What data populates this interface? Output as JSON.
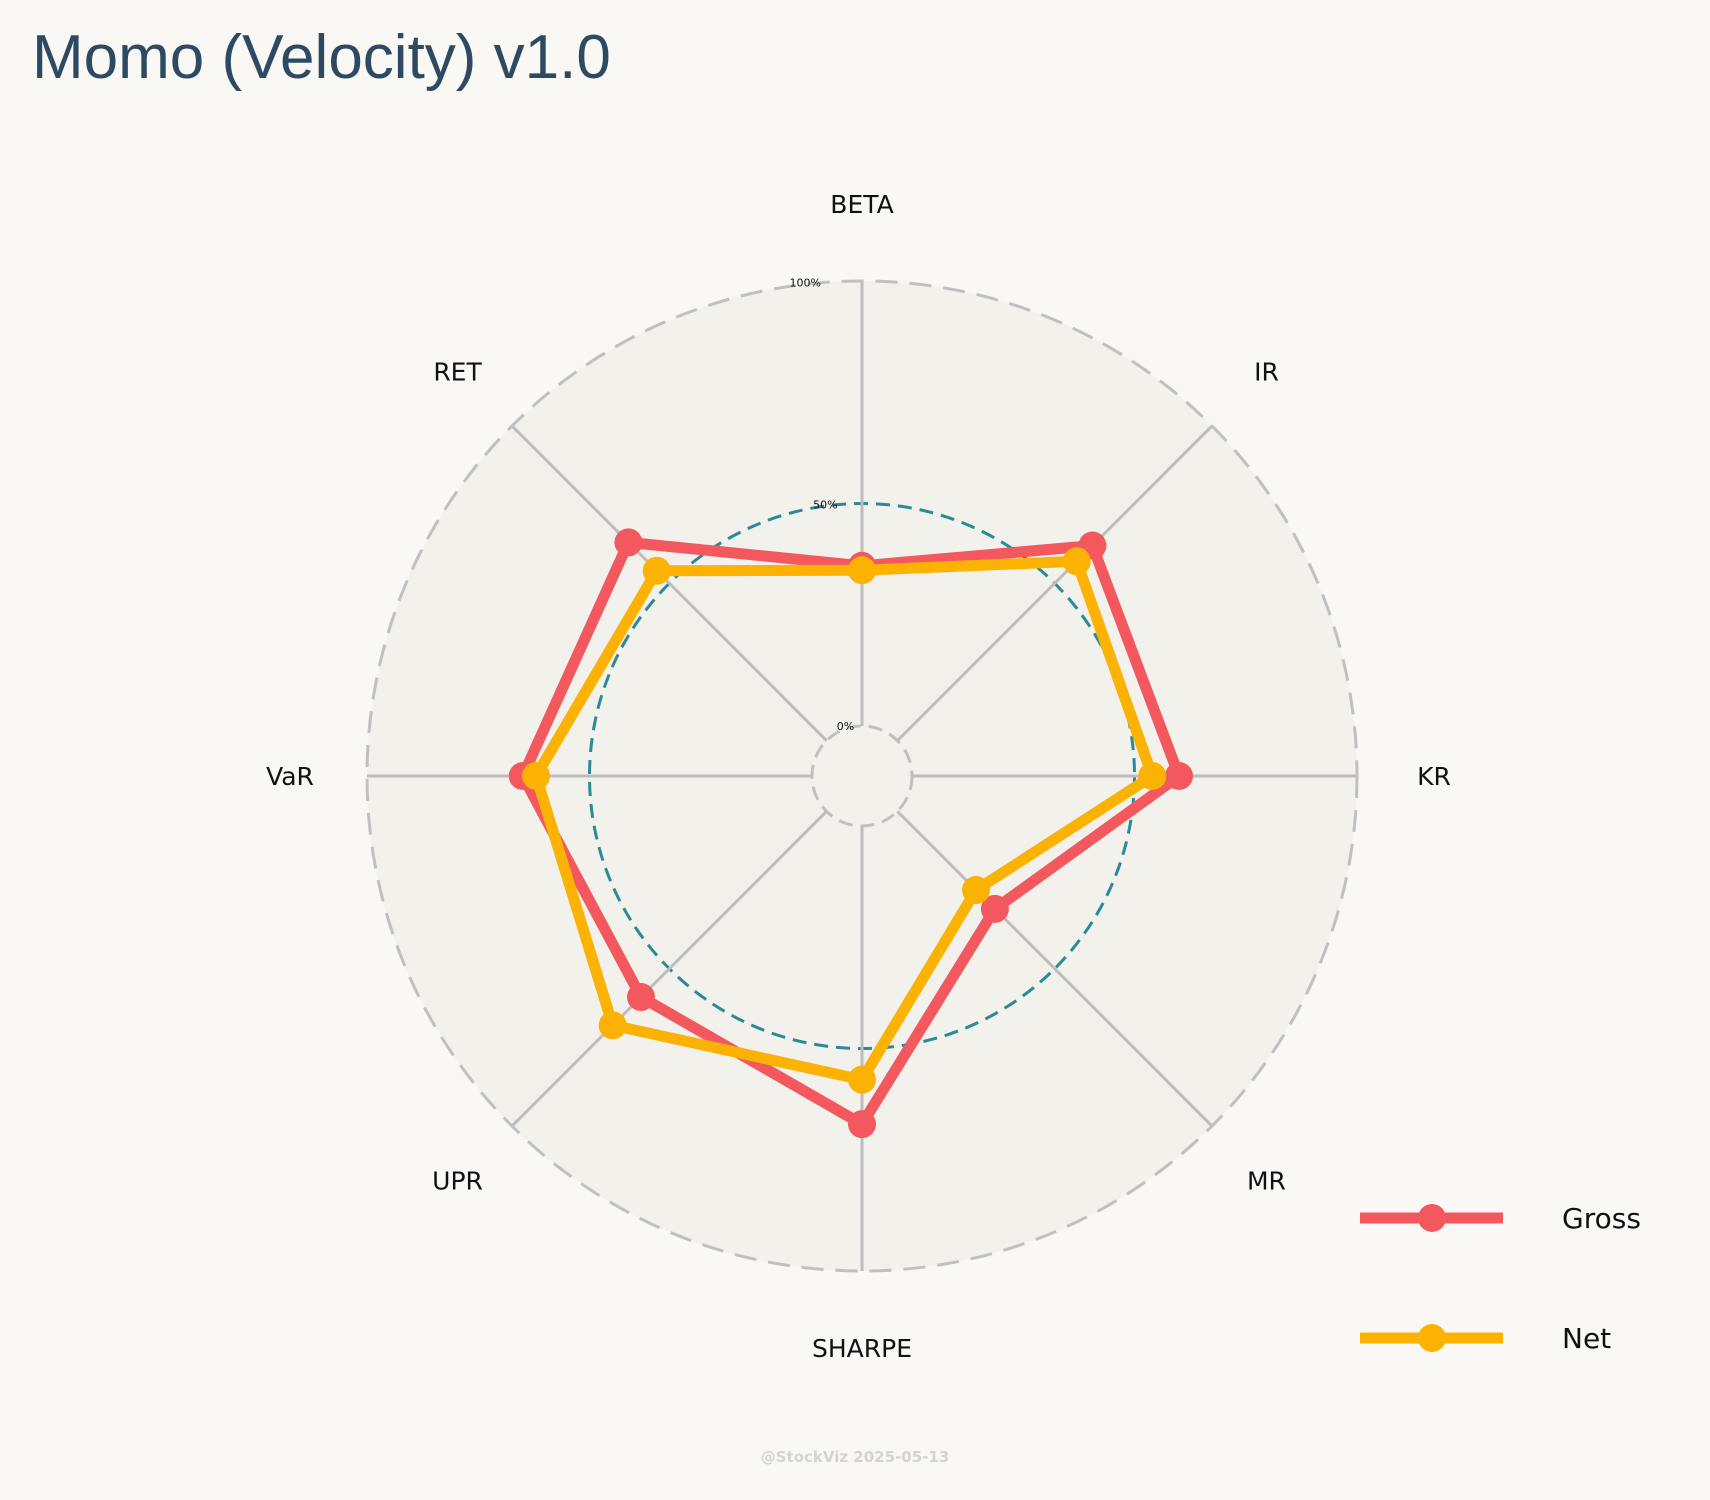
{
  "title": "Momo (Velocity) v1.0",
  "watermark": "@StockViz 2025-05-13",
  "colors": {
    "background": "#f9f8f4",
    "plot_fill": "#f2f1ec",
    "title": "#2e4a62",
    "reference_ring": "#2a8a96",
    "outer_ring": "#c0c0c0",
    "spoke": "#bdbdbd"
  },
  "chart_data": {
    "type": "radar",
    "axes": [
      "BETA",
      "IR",
      "KR",
      "MR",
      "SHARPE",
      "UPR",
      "VaR",
      "RET"
    ],
    "rlim": [
      0,
      100
    ],
    "tick_labels": [
      "0%",
      "50%",
      "100%"
    ],
    "reference_level": 50,
    "grid": true,
    "legend_placement": "bottom-right",
    "series": [
      {
        "name": "Gross",
        "color": "#f4585f",
        "values": [
          36,
          62,
          60,
          31,
          67,
          59,
          65,
          63
        ]
      },
      {
        "name": "Net",
        "color": "#fbb203",
        "values": [
          35,
          57,
          54,
          25,
          57,
          68,
          62,
          54
        ]
      }
    ]
  }
}
